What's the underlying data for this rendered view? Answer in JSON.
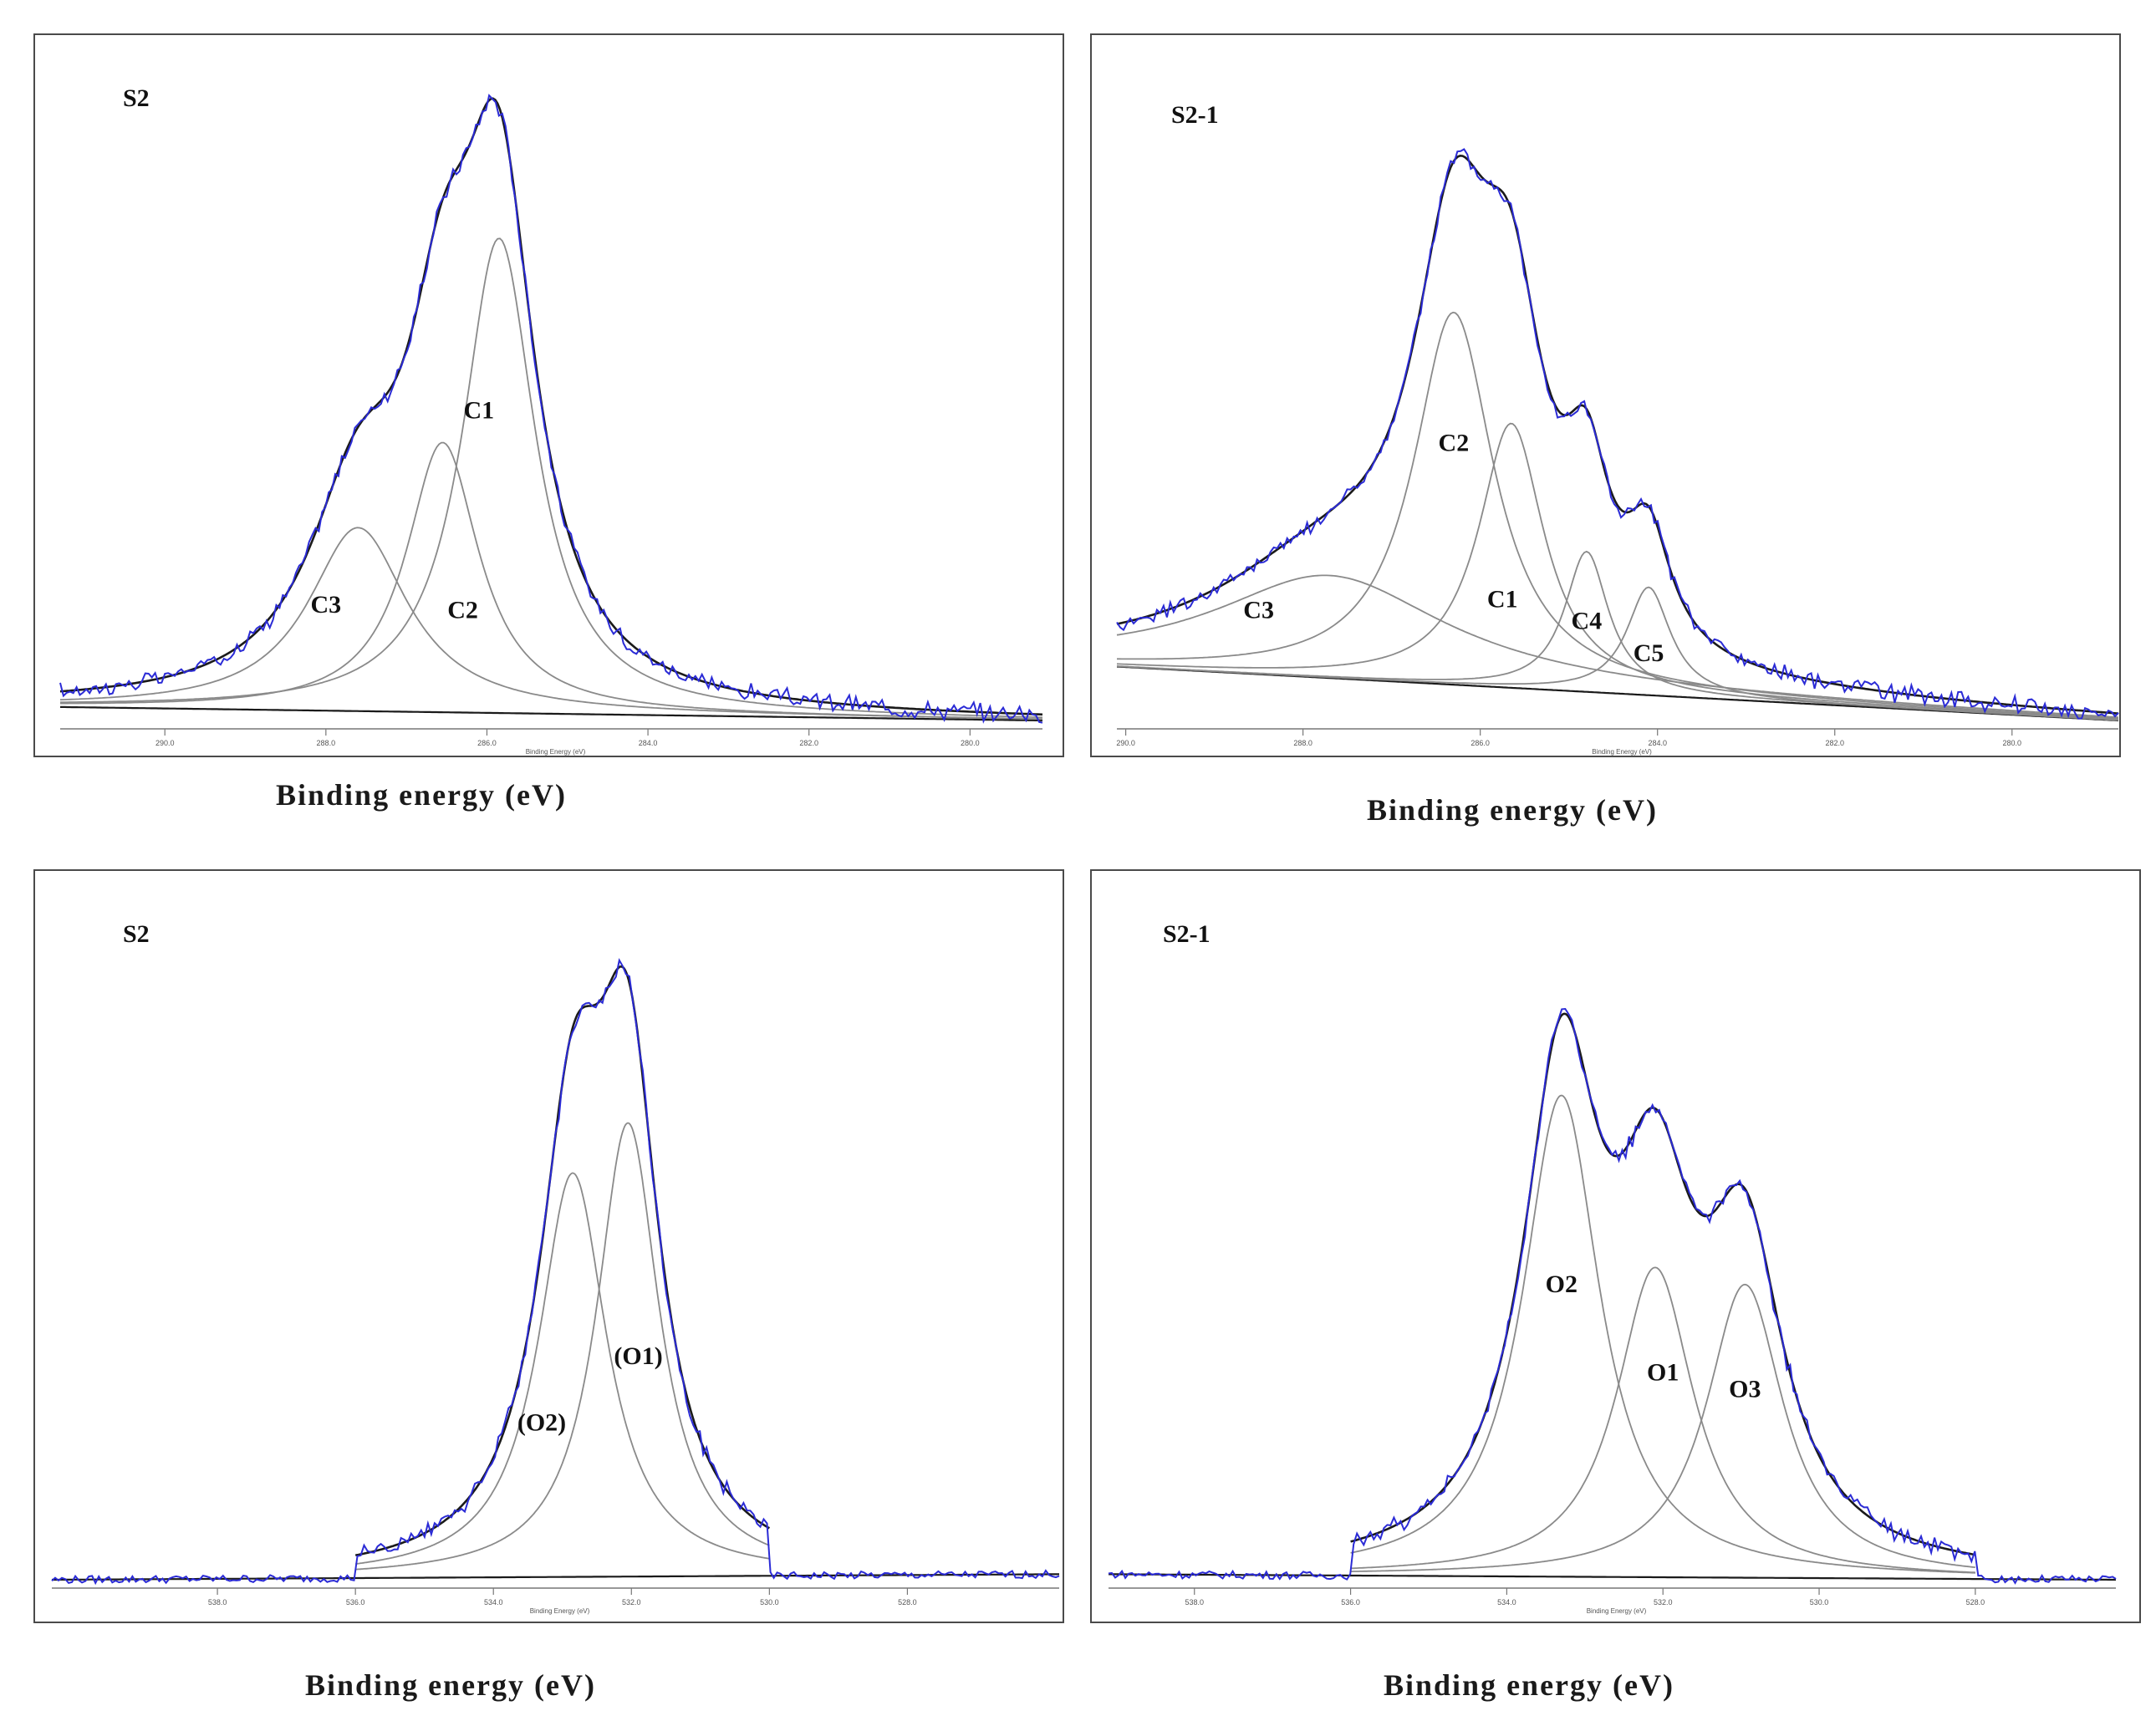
{
  "figure": {
    "xlabel": "Binding energy (eV)"
  },
  "chart_data": [
    {
      "type": "line",
      "title": "S2",
      "xlabel": "Binding energy (eV)",
      "inner_xlabel": "Binding Energy (eV)",
      "xlim": [
        291.3,
        279.1
      ],
      "ylim": [
        0,
        1.1
      ],
      "xticks": [
        290,
        288,
        286,
        284,
        282,
        280
      ],
      "xtick_labels": [
        "290.0",
        "288.0",
        "286.0",
        "284.0",
        "282.0",
        "280.0"
      ],
      "background": {
        "left": 0.025,
        "right": 0.0
      },
      "peaks": [
        {
          "name": "C1",
          "center": 285.85,
          "height": 0.88,
          "width": 0.55,
          "label_x": 286.1,
          "label_y": 0.56
        },
        {
          "name": "C2",
          "center": 286.55,
          "height": 0.5,
          "width": 0.55,
          "label_x": 286.3,
          "label_y": 0.19
        },
        {
          "name": "C3",
          "center": 287.6,
          "height": 0.34,
          "width": 0.75,
          "label_x": 288.0,
          "label_y": 0.2
        }
      ],
      "series": [
        {
          "name": "Envelope (fit)",
          "color": "#1a1a1a"
        },
        {
          "name": "Experimental",
          "color": "#2b2bd6"
        },
        {
          "name": "Component peaks",
          "color": "#8a8a8a"
        },
        {
          "name": "Background",
          "color": "#1a1a1a"
        }
      ]
    },
    {
      "type": "line",
      "title": "S2-1",
      "xlabel": "Binding energy (eV)",
      "inner_xlabel": "Binding Energy (eV)",
      "xlim": [
        290.1,
        278.8
      ],
      "ylim": [
        0,
        1.1
      ],
      "xticks": [
        290,
        288,
        286,
        284,
        282,
        280
      ],
      "xtick_labels": [
        "290.0",
        "288.0",
        "286.0",
        "284.0",
        "282.0",
        "280.0"
      ],
      "background": {
        "left": 0.1,
        "right": 0.0
      },
      "peaks": [
        {
          "name": "C2",
          "center": 286.3,
          "height": 0.69,
          "width": 0.55,
          "label_x": 286.3,
          "label_y": 0.5
        },
        {
          "name": "C1",
          "center": 285.65,
          "height": 0.49,
          "width": 0.45,
          "label_x": 285.75,
          "label_y": 0.21
        },
        {
          "name": "C4",
          "center": 284.8,
          "height": 0.26,
          "width": 0.3,
          "label_x": 284.8,
          "label_y": 0.17
        },
        {
          "name": "C5",
          "center": 284.1,
          "height": 0.2,
          "width": 0.3,
          "label_x": 284.1,
          "label_y": 0.11
        },
        {
          "name": "C3",
          "center": 287.7,
          "height": 0.19,
          "width": 1.6,
          "label_x": 288.5,
          "label_y": 0.19
        }
      ],
      "series": [
        {
          "name": "Envelope (fit)",
          "color": "#1a1a1a"
        },
        {
          "name": "Experimental",
          "color": "#2b2bd6"
        },
        {
          "name": "Component peaks",
          "color": "#8a8a8a"
        },
        {
          "name": "Background",
          "color": "#1a1a1a"
        }
      ]
    },
    {
      "type": "line",
      "title": "S2",
      "xlabel": "Binding energy (eV)",
      "inner_xlabel": "Binding Energy (eV)",
      "xlim": [
        540.4,
        525.8
      ],
      "ylim": [
        0,
        1.1
      ],
      "fit_range": [
        536.0,
        530.0
      ],
      "xticks": [
        538,
        536,
        534,
        532,
        530,
        528
      ],
      "xtick_labels": [
        "538.0",
        "536.0",
        "534.0",
        "532.0",
        "530.0",
        "528.0"
      ],
      "background": {
        "left": 0.0,
        "right": 0.01
      },
      "peaks": [
        {
          "name": "(O1)",
          "center": 532.05,
          "height": 0.82,
          "width": 0.55,
          "label_x": 531.9,
          "label_y": 0.39
        },
        {
          "name": "(O2)",
          "center": 532.85,
          "height": 0.73,
          "width": 0.6,
          "label_x": 533.3,
          "label_y": 0.27
        }
      ],
      "series": [
        {
          "name": "Envelope (fit)",
          "color": "#1a1a1a"
        },
        {
          "name": "Experimental",
          "color": "#2b2bd6"
        },
        {
          "name": "Component peaks",
          "color": "#8a8a8a"
        },
        {
          "name": "Background",
          "color": "#1a1a1a"
        }
      ]
    },
    {
      "type": "line",
      "title": "S2-1",
      "xlabel": "Binding energy (eV)",
      "inner_xlabel": "Binding Energy (eV)",
      "xlim": [
        539.1,
        526.2
      ],
      "ylim": [
        0,
        1.1
      ],
      "fit_range": [
        536.0,
        528.0
      ],
      "xticks": [
        538,
        536,
        534,
        532,
        530,
        528
      ],
      "xtick_labels": [
        "538.0",
        "536.0",
        "534.0",
        "532.0",
        "530.0",
        "528.0"
      ],
      "background": {
        "left": 0.01,
        "right": 0.0
      },
      "peaks": [
        {
          "name": "O2",
          "center": 533.3,
          "height": 0.87,
          "width": 0.6,
          "label_x": 533.3,
          "label_y": 0.52
        },
        {
          "name": "O1",
          "center": 532.1,
          "height": 0.56,
          "width": 0.6,
          "label_x": 532.0,
          "label_y": 0.36
        },
        {
          "name": "O3",
          "center": 530.95,
          "height": 0.53,
          "width": 0.6,
          "label_x": 530.95,
          "label_y": 0.33
        }
      ],
      "series": [
        {
          "name": "Envelope (fit)",
          "color": "#1a1a1a"
        },
        {
          "name": "Experimental",
          "color": "#2b2bd6"
        },
        {
          "name": "Component peaks",
          "color": "#8a8a8a"
        },
        {
          "name": "Background",
          "color": "#1a1a1a"
        }
      ]
    }
  ]
}
